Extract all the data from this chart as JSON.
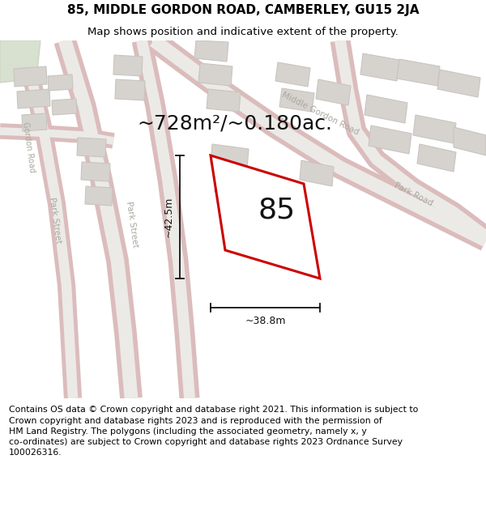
{
  "title": "85, MIDDLE GORDON ROAD, CAMBERLEY, GU15 2JA",
  "subtitle": "Map shows position and indicative extent of the property.",
  "footer": "Contains OS data © Crown copyright and database right 2021. This information is subject to\nCrown copyright and database rights 2023 and is reproduced with the permission of\nHM Land Registry. The polygons (including the associated geometry, namely x, y\nco-ordinates) are subject to Crown copyright and database rights 2023 Ordnance Survey\n100026316.",
  "area_label": "~728m²/~0.180ac.",
  "number_label": "85",
  "dim_width": "~38.8m",
  "dim_height": "~42.5m",
  "bg_color": "#f2f0ed",
  "highlight_stroke": "#cc0000",
  "road_label_color": "#aaa89f",
  "title_fontsize": 11,
  "subtitle_fontsize": 9.5,
  "footer_fontsize": 7.8,
  "area_fontsize": 18,
  "number_fontsize": 26
}
